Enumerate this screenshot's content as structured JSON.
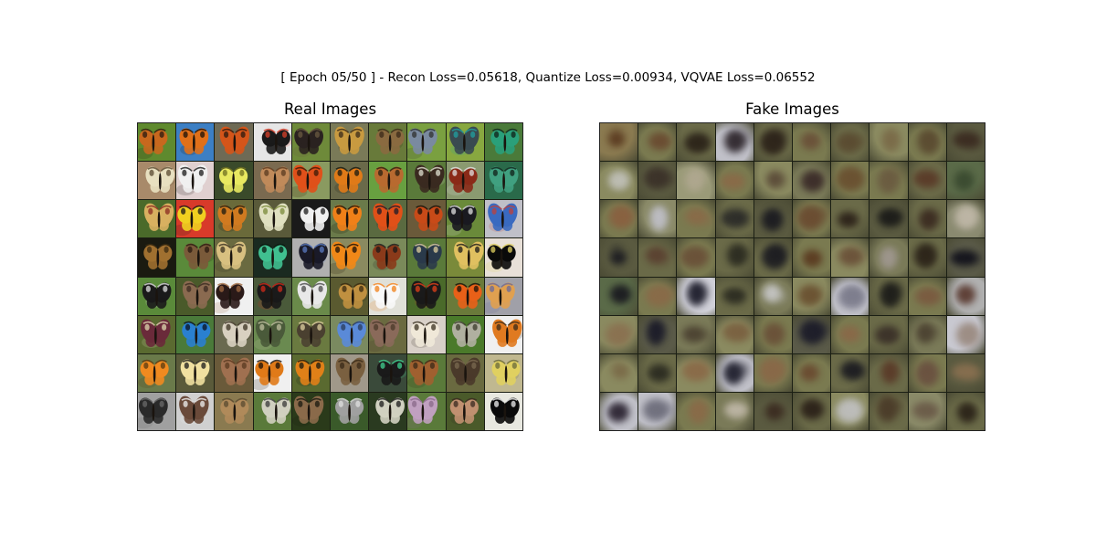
{
  "figure": {
    "suptitle": "[ Epoch 05/50 ] - Recon Loss=0.05618, Quantize Loss=0.00934, VQVAE Loss=0.06552"
  },
  "panels": {
    "real": {
      "title": "Real Images",
      "rows": 8,
      "cols": 10,
      "tiles": [
        {
          "bg": "#5f8a2e",
          "wing": "#c8681e",
          "accent": "#2a1a10"
        },
        {
          "bg": "#3c7fc4",
          "wing": "#e0701a",
          "accent": "#1a1008"
        },
        {
          "bg": "#6e6a55",
          "wing": "#d4551a",
          "accent": "#2a1a10"
        },
        {
          "bg": "#e6e6e6",
          "wing": "#1a1a1a",
          "accent": "#d8402a"
        },
        {
          "bg": "#6e8a3a",
          "wing": "#2a2220",
          "accent": "#6a5a40"
        },
        {
          "bg": "#7a7a58",
          "wing": "#c89a40",
          "accent": "#3a2a18"
        },
        {
          "bg": "#687a3a",
          "wing": "#8a6a40",
          "accent": "#3a2a18"
        },
        {
          "bg": "#7aa040",
          "wing": "#7a8aa0",
          "accent": "#303030"
        },
        {
          "bg": "#88a840",
          "wing": "#3a4a50",
          "accent": "#20a0a0"
        },
        {
          "bg": "#4a7a3a",
          "wing": "#2aa07a",
          "accent": "#102018"
        },
        {
          "bg": "#a88a6a",
          "wing": "#e8e0c0",
          "accent": "#5a4a30"
        },
        {
          "bg": "#e0d0d0",
          "wing": "#f0f0f0",
          "accent": "#1a1a1a"
        },
        {
          "bg": "#3a4a2a",
          "wing": "#e8e860",
          "accent": "#707020"
        },
        {
          "bg": "#7a6a50",
          "wing": "#c08a5a",
          "accent": "#5a3a20"
        },
        {
          "bg": "#8a9a60",
          "wing": "#e0501a",
          "accent": "#3a1a08"
        },
        {
          "bg": "#6a6a4a",
          "wing": "#e07a18",
          "accent": "#1a1a10"
        },
        {
          "bg": "#68a040",
          "wing": "#b86a30",
          "accent": "#2a2010"
        },
        {
          "bg": "#5a7a3a",
          "wing": "#3a2a20",
          "accent": "#e0e0d0"
        },
        {
          "bg": "#8a9a70",
          "wing": "#8a2a18",
          "accent": "#e0e0e0"
        },
        {
          "bg": "#2a6a4a",
          "wing": "#40a080",
          "accent": "#102018"
        },
        {
          "bg": "#4a6a2a",
          "wing": "#d8b060",
          "accent": "#8a2a20"
        },
        {
          "bg": "#d83a2a",
          "wing": "#f0d020",
          "accent": "#1a1a1a"
        },
        {
          "bg": "#6a6a3a",
          "wing": "#d07a20",
          "accent": "#1a1a10"
        },
        {
          "bg": "#5a5a3a",
          "wing": "#e0e0c0",
          "accent": "#7a8a3a"
        },
        {
          "bg": "#1a1a1a",
          "wing": "#f0f0f0",
          "accent": "#1a1a1a"
        },
        {
          "bg": "#6a7a4a",
          "wing": "#f08018",
          "accent": "#1a1008"
        },
        {
          "bg": "#5a6a40",
          "wing": "#e05018",
          "accent": "#1a1a2a"
        },
        {
          "bg": "#6a5a3a",
          "wing": "#c84a18",
          "accent": "#1a1008"
        },
        {
          "bg": "#6a8a3a",
          "wing": "#1a1a20",
          "accent": "#e0e0e0"
        },
        {
          "bg": "#c0c0c8",
          "wing": "#3a6ac0",
          "accent": "#c0403a"
        },
        {
          "bg": "#1a1a10",
          "wing": "#a07030",
          "accent": "#3a2a10"
        },
        {
          "bg": "#5a8a3a",
          "wing": "#7a5a3a",
          "accent": "#2a1a10"
        },
        {
          "bg": "#6a6a40",
          "wing": "#d8c080",
          "accent": "#3a3020"
        },
        {
          "bg": "#1a2a20",
          "wing": "#40c090",
          "accent": "#0a1a10"
        },
        {
          "bg": "#b0b0b0",
          "wing": "#1a1a28",
          "accent": "#5a7ac0"
        },
        {
          "bg": "#8a8a60",
          "wing": "#f08818",
          "accent": "#1a1008"
        },
        {
          "bg": "#7a8a5a",
          "wing": "#8a3a1a",
          "accent": "#1a1a1a"
        },
        {
          "bg": "#5a7a3a",
          "wing": "#2a3a4a",
          "accent": "#e0d0a0"
        },
        {
          "bg": "#7a8a3a",
          "wing": "#e0c060",
          "accent": "#1a1a1a"
        },
        {
          "bg": "#e8e0d8",
          "wing": "#0a0a0a",
          "accent": "#e0d060"
        },
        {
          "bg": "#5a8a3a",
          "wing": "#1a1a1a",
          "accent": "#e0e0e0"
        },
        {
          "bg": "#4a5a2a",
          "wing": "#8a6a50",
          "accent": "#3a2a20"
        },
        {
          "bg": "#f0f0f0",
          "wing": "#2a1a18",
          "accent": "#a06a40"
        },
        {
          "bg": "#4a5a3a",
          "wing": "#1a1a1a",
          "accent": "#d02a1a"
        },
        {
          "bg": "#6a8a4a",
          "wing": "#e8e8e8",
          "accent": "#4a4a4a"
        },
        {
          "bg": "#5a5a30",
          "wing": "#c09040",
          "accent": "#3a2a10"
        },
        {
          "bg": "#e0e0d8",
          "wing": "#f8f8f8",
          "accent": "#f08018"
        },
        {
          "bg": "#4a6a2a",
          "wing": "#1a1a1a",
          "accent": "#e0401a"
        },
        {
          "bg": "#6a7a3a",
          "wing": "#e86018",
          "accent": "#1a1008"
        },
        {
          "bg": "#a0a0a8",
          "wing": "#e0a050",
          "accent": "#6a6a9a"
        },
        {
          "bg": "#5a6a30",
          "wing": "#6a2a3a",
          "accent": "#e0d8b0"
        },
        {
          "bg": "#4a7a3a",
          "wing": "#2a80d0",
          "accent": "#0a1020"
        },
        {
          "bg": "#6a6a50",
          "wing": "#d8d0c0",
          "accent": "#3a3020"
        },
        {
          "bg": "#6a8a50",
          "wing": "#4a5a3a",
          "accent": "#c0c0a0"
        },
        {
          "bg": "#6a7a40",
          "wing": "#4a4030",
          "accent": "#e0d0a0"
        },
        {
          "bg": "#7a8a60",
          "wing": "#5a8ad8",
          "accent": "#2a3a5a"
        },
        {
          "bg": "#6a6a40",
          "wing": "#8a6a5a",
          "accent": "#4a3a2a"
        },
        {
          "bg": "#d8d0c8",
          "wing": "#f0e8d8",
          "accent": "#3a3020"
        },
        {
          "bg": "#4a7a2a",
          "wing": "#b0b0a0",
          "accent": "#3a3a2a"
        },
        {
          "bg": "#f0f0f0",
          "wing": "#e07a20",
          "accent": "#3a2a18"
        },
        {
          "bg": "#6a7a4a",
          "wing": "#f08a20",
          "accent": "#5a3a10"
        },
        {
          "bg": "#5a5a3a",
          "wing": "#f0e0a0",
          "accent": "#1a1a1a"
        },
        {
          "bg": "#6a5a3a",
          "wing": "#a07050",
          "accent": "#5a3a20"
        },
        {
          "bg": "#f0f0f0",
          "wing": "#e07a18",
          "accent": "#1a1008"
        },
        {
          "bg": "#5a6a30",
          "wing": "#e08018",
          "accent": "#1a1a10"
        },
        {
          "bg": "#a0988a",
          "wing": "#7a6040",
          "accent": "#3a2a18"
        },
        {
          "bg": "#3a4a3a",
          "wing": "#1a1a1a",
          "accent": "#40d090"
        },
        {
          "bg": "#5a7a3a",
          "wing": "#a06030",
          "accent": "#3a2a18"
        },
        {
          "bg": "#6a6a40",
          "wing": "#4a3a2a",
          "accent": "#7a6a50"
        },
        {
          "bg": "#c0b890",
          "wing": "#e0d060",
          "accent": "#6a6a3a"
        },
        {
          "bg": "#a0a0a0",
          "wing": "#2a2a2a",
          "accent": "#6a6a6a"
        },
        {
          "bg": "#d0d0d0",
          "wing": "#6a4a3a",
          "accent": "#f0f0f0"
        },
        {
          "bg": "#8a7a50",
          "wing": "#b08a5a",
          "accent": "#5a4a30"
        },
        {
          "bg": "#5a7a3a",
          "wing": "#d0d0c0",
          "accent": "#3a3a3a"
        },
        {
          "bg": "#2a3a1a",
          "wing": "#8a6a4a",
          "accent": "#1a1a10"
        },
        {
          "bg": "#3a5a2a",
          "wing": "#a0a0a0",
          "accent": "#e0e0e0"
        },
        {
          "bg": "#2a3a20",
          "wing": "#d0d0c0",
          "accent": "#1a1a1a"
        },
        {
          "bg": "#5a7a3a",
          "wing": "#c0a0c0",
          "accent": "#8a6a8a"
        },
        {
          "bg": "#4a5a2a",
          "wing": "#c09070",
          "accent": "#3a2a20"
        },
        {
          "bg": "#e8e8e0",
          "wing": "#0a0a0a",
          "accent": "#f0f0f0"
        }
      ]
    },
    "fake": {
      "title": "Fake Images",
      "rows": 8,
      "cols": 10,
      "tiles": [
        {
          "bg": "#8a7a50",
          "blob": "#5a3a20"
        },
        {
          "bg": "#7a7a50",
          "blob": "#6a4a30"
        },
        {
          "bg": "#6a6a48",
          "blob": "#2a2218"
        },
        {
          "bg": "#c0c0c8",
          "blob": "#2a2228"
        },
        {
          "bg": "#6a6a48",
          "blob": "#2a2018"
        },
        {
          "bg": "#7a7a50",
          "blob": "#6a5038"
        },
        {
          "bg": "#6a6a48",
          "blob": "#5a4a30"
        },
        {
          "bg": "#8a8a60",
          "blob": "#7a6a48"
        },
        {
          "bg": "#7a7a50",
          "blob": "#5a4a30"
        },
        {
          "bg": "#5a5a40",
          "blob": "#3a2a20"
        },
        {
          "bg": "#8a8a60",
          "blob": "#c0c0b8"
        },
        {
          "bg": "#5a5a40",
          "blob": "#3a3028"
        },
        {
          "bg": "#9a9a78",
          "blob": "#b0a890"
        },
        {
          "bg": "#7a7a50",
          "blob": "#8a6a48"
        },
        {
          "bg": "#8a8a60",
          "blob": "#5a4a38"
        },
        {
          "bg": "#7a7a58",
          "blob": "#3a2a28"
        },
        {
          "bg": "#7a7a50",
          "blob": "#6a5030"
        },
        {
          "bg": "#7a7a50",
          "blob": "#6a5a40"
        },
        {
          "bg": "#6a6a48",
          "blob": "#5a3a28"
        },
        {
          "bg": "#5a6a48",
          "blob": "#3a4a30"
        },
        {
          "bg": "#7a7a50",
          "blob": "#8a6040"
        },
        {
          "bg": "#8a8a68",
          "blob": "#c0c0c8"
        },
        {
          "bg": "#7a7a50",
          "blob": "#8a6a48"
        },
        {
          "bg": "#6a6a48",
          "blob": "#2a2a28"
        },
        {
          "bg": "#5a5a40",
          "blob": "#1a1a20"
        },
        {
          "bg": "#7a7a50",
          "blob": "#6a4a30"
        },
        {
          "bg": "#6a6a48",
          "blob": "#2a2018"
        },
        {
          "bg": "#5a5a40",
          "blob": "#1a1a18"
        },
        {
          "bg": "#6a6a48",
          "blob": "#3a2a20"
        },
        {
          "bg": "#8a8a70",
          "blob": "#c0b8a8"
        },
        {
          "bg": "#5a5a40",
          "blob": "#1a1a20"
        },
        {
          "bg": "#6a6a48",
          "blob": "#5a4030"
        },
        {
          "bg": "#7a7a50",
          "blob": "#6a5038"
        },
        {
          "bg": "#6a6a48",
          "blob": "#2a2a20"
        },
        {
          "bg": "#6a6a48",
          "blob": "#1a1a20"
        },
        {
          "bg": "#7a7a50",
          "blob": "#5a3a20"
        },
        {
          "bg": "#8a8a60",
          "blob": "#6a5038"
        },
        {
          "bg": "#7a7a58",
          "blob": "#a09890"
        },
        {
          "bg": "#6a6a48",
          "blob": "#2a2218"
        },
        {
          "bg": "#5a5a48",
          "blob": "#10101a"
        },
        {
          "bg": "#5a6a48",
          "blob": "#1a1a20"
        },
        {
          "bg": "#7a7a50",
          "blob": "#8a6a48"
        },
        {
          "bg": "#d0d0d8",
          "blob": "#1a1a28"
        },
        {
          "bg": "#6a6a48",
          "blob": "#2a2a20"
        },
        {
          "bg": "#7a7a58",
          "blob": "#c8c8c8"
        },
        {
          "bg": "#8a8a60",
          "blob": "#6a5030"
        },
        {
          "bg": "#c0c0c8",
          "blob": "#7a7a8a"
        },
        {
          "bg": "#6a6a48",
          "blob": "#1a1a18"
        },
        {
          "bg": "#7a7a50",
          "blob": "#7a5a40"
        },
        {
          "bg": "#b0b0b0",
          "blob": "#5a3a30"
        },
        {
          "bg": "#8a8a60",
          "blob": "#8a7050"
        },
        {
          "bg": "#5a5a48",
          "blob": "#1a1a28"
        },
        {
          "bg": "#7a7a58",
          "blob": "#4a4030"
        },
        {
          "bg": "#8a8a60",
          "blob": "#7a6040"
        },
        {
          "bg": "#7a7a50",
          "blob": "#6a5038"
        },
        {
          "bg": "#5a5a48",
          "blob": "#1a1a28"
        },
        {
          "bg": "#7a7a50",
          "blob": "#8a6848"
        },
        {
          "bg": "#6a6a48",
          "blob": "#3a3028"
        },
        {
          "bg": "#7a7a58",
          "blob": "#4a4030"
        },
        {
          "bg": "#c8c8d0",
          "blob": "#9a8a80"
        },
        {
          "bg": "#8a8a60",
          "blob": "#7a6a48"
        },
        {
          "bg": "#6a6a48",
          "blob": "#2a2a20"
        },
        {
          "bg": "#8a8a60",
          "blob": "#8a6a48"
        },
        {
          "bg": "#c0c0c8",
          "blob": "#1a1a28"
        },
        {
          "bg": "#7a7a50",
          "blob": "#8a6848"
        },
        {
          "bg": "#7a7a50",
          "blob": "#6a4a30"
        },
        {
          "bg": "#6a6a48",
          "blob": "#1a1a20"
        },
        {
          "bg": "#6a6a48",
          "blob": "#5a3a28"
        },
        {
          "bg": "#7a7a50",
          "blob": "#6a5040"
        },
        {
          "bg": "#5a5a40",
          "blob": "#8a7050"
        },
        {
          "bg": "#c0c0c8",
          "blob": "#2a2230"
        },
        {
          "bg": "#c0c0c8",
          "blob": "#6a6a78"
        },
        {
          "bg": "#7a7a50",
          "blob": "#8a6a48"
        },
        {
          "bg": "#7a7a58",
          "blob": "#c0b8a8"
        },
        {
          "bg": "#5a5a40",
          "blob": "#3a2a20"
        },
        {
          "bg": "#6a6a48",
          "blob": "#2a2018"
        },
        {
          "bg": "#8a8a60",
          "blob": "#c0c0c0"
        },
        {
          "bg": "#6a6a48",
          "blob": "#4a3a28"
        },
        {
          "bg": "#8a8a68",
          "blob": "#6a5a48"
        },
        {
          "bg": "#6a6a48",
          "blob": "#2a2218"
        }
      ]
    }
  }
}
